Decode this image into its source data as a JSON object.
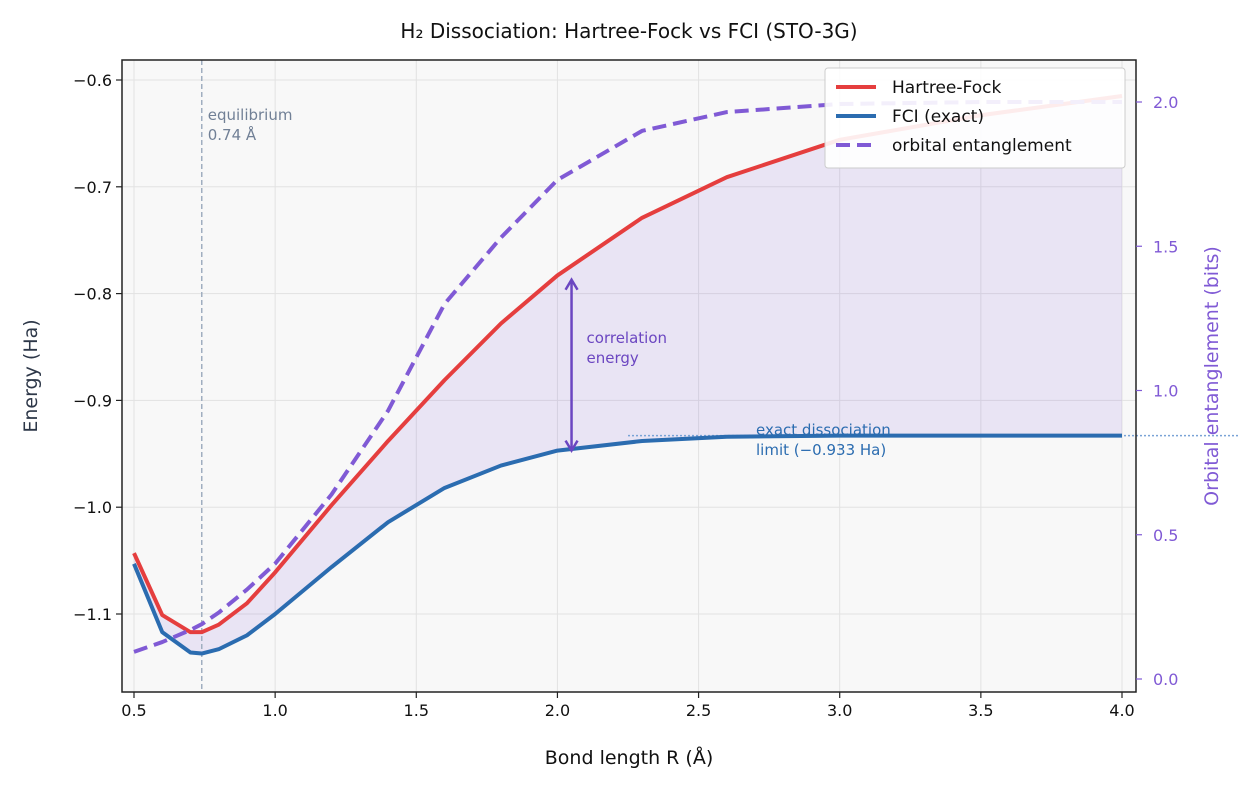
{
  "chart_data": {
    "type": "line",
    "title": "H₂ Dissociation: Hartree-Fock vs FCI (STO-3G)",
    "xlabel": "Bond length R (Å)",
    "ylabel": "Energy (Ha)",
    "y2label": "Orbital entanglement (bits)",
    "xlim": [
      0.45,
      4.05
    ],
    "ylim": [
      -1.175,
      -0.58
    ],
    "y2lim": [
      -0.05,
      2.14
    ],
    "xticks": [
      0.5,
      1.0,
      1.5,
      2.0,
      2.5,
      3.0,
      3.5,
      4.0
    ],
    "xtick_labels": [
      "0.5",
      "1.0",
      "1.5",
      "2.0",
      "2.5",
      "3.0",
      "3.5",
      "4.0"
    ],
    "yticks": [
      -0.6,
      -0.7,
      -0.8,
      -0.9,
      -1.0,
      -1.1
    ],
    "ytick_labels": [
      "−0.6",
      "−0.7",
      "−0.8",
      "−0.9",
      "−1.0",
      "−1.1"
    ],
    "y2ticks": [
      0.0,
      0.5,
      1.0,
      1.5,
      2.0
    ],
    "y2tick_labels": [
      "0.0",
      "0.5",
      "1.0",
      "1.5",
      "2.0"
    ],
    "grid": true,
    "legend_position": "top-right",
    "x": [
      0.5,
      0.6,
      0.7,
      0.74,
      0.8,
      0.9,
      1.0,
      1.2,
      1.4,
      1.6,
      1.8,
      2.0,
      2.3,
      2.6,
      3.0,
      3.5,
      4.0
    ],
    "series": [
      {
        "name": "Hartree-Fock",
        "color": "#e53e3e",
        "axis": "left",
        "style": "solid",
        "values": [
          -1.043,
          -1.101,
          -1.117,
          -1.117,
          -1.11,
          -1.09,
          -1.061,
          -0.998,
          -0.938,
          -0.881,
          -0.828,
          -0.783,
          -0.729,
          -0.691,
          -0.656,
          -0.633,
          -0.615
        ]
      },
      {
        "name": "FCI (exact)",
        "color": "#2b6cb0",
        "axis": "left",
        "style": "solid",
        "values": [
          -1.053,
          -1.117,
          -1.136,
          -1.137,
          -1.133,
          -1.12,
          -1.1,
          -1.056,
          -1.014,
          -0.982,
          -0.961,
          -0.947,
          -0.938,
          -0.934,
          -0.933,
          -0.933,
          -0.933
        ]
      },
      {
        "name": "orbital entanglement",
        "color": "#805ad5",
        "axis": "right",
        "style": "dashed",
        "values": [
          0.094,
          0.128,
          0.17,
          0.19,
          0.23,
          0.31,
          0.4,
          0.64,
          0.93,
          1.3,
          1.53,
          1.73,
          1.9,
          1.965,
          1.993,
          2.0,
          2.0
        ]
      }
    ],
    "annotations": {
      "equilibrium": {
        "x": 0.74,
        "line1": "equilibrium",
        "line2": "0.74 Å"
      },
      "correlation": {
        "x": 2.05,
        "y_top": -0.787,
        "y_bottom": -0.947,
        "line1": "correlation",
        "line2": "energy"
      },
      "limit": {
        "y": -0.933,
        "x_start": 2.25,
        "line1": "exact dissociation",
        "line2": "limit (−0.933 Ha)"
      }
    }
  }
}
